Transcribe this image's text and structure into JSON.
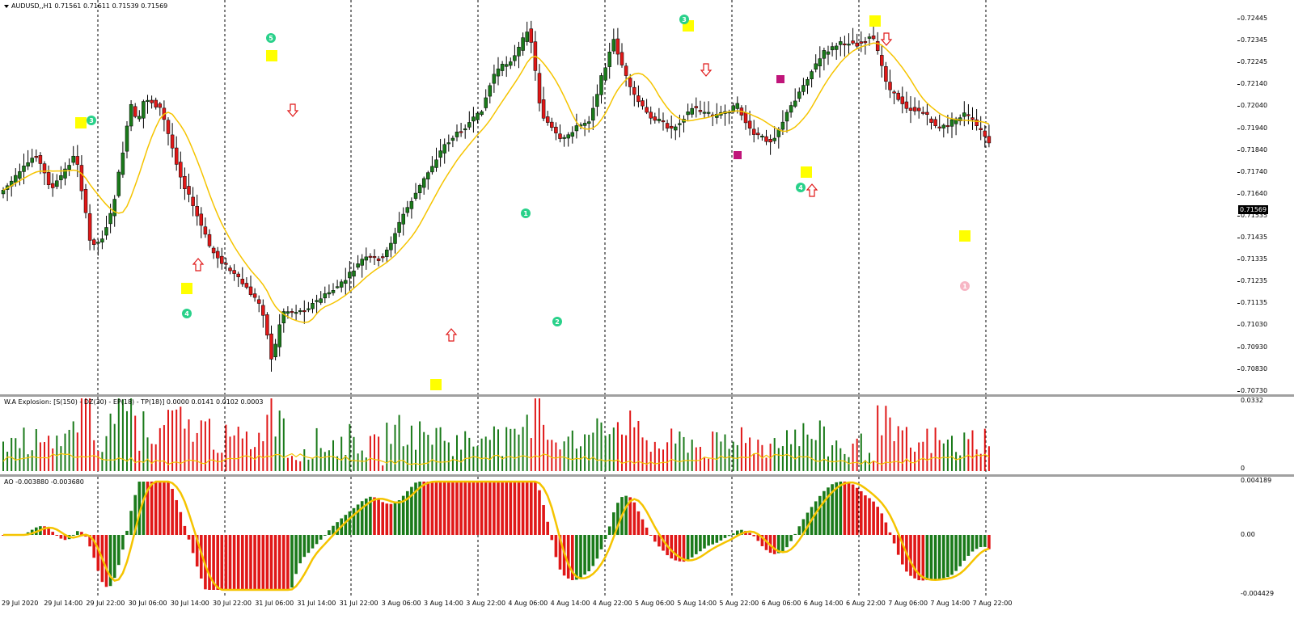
{
  "main": {
    "title_menu": "AUDUSD,,H1  0.71561 0.71611 0.71539 0.71569",
    "last_price": "0.71569",
    "y_ticks": [
      "0.72445",
      "0.72345",
      "0.72245",
      "0.72140",
      "0.72040",
      "0.71940",
      "0.71840",
      "0.71740",
      "0.71640",
      "0.71535",
      "0.71435",
      "0.71335",
      "0.71235",
      "0.71135",
      "0.71030",
      "0.70930",
      "0.70830",
      "0.70730"
    ],
    "wave_labels": [
      {
        "t": "3",
        "x": 113,
        "y": 149,
        "c": "#29d18a"
      },
      {
        "t": "5",
        "x": 335,
        "y": 47,
        "c": "#29d18a"
      },
      {
        "t": "4",
        "x": 231,
        "y": 388,
        "c": "#29d18a"
      },
      {
        "t": "1",
        "x": 650,
        "y": 264,
        "c": "#29d18a"
      },
      {
        "t": "2",
        "x": 689,
        "y": 398,
        "c": "#29d18a"
      },
      {
        "t": "3",
        "x": 846,
        "y": 24,
        "c": "#29d18a"
      },
      {
        "t": "4",
        "x": 990,
        "y": 232,
        "c": "#29d18a"
      },
      {
        "t": "1",
        "x": 1193,
        "y": 354,
        "c": "#f7b6c4"
      }
    ],
    "markers": {
      "yellow": [
        [
          100,
          152
        ],
        [
          336,
          69
        ],
        [
          231,
          357
        ],
        [
          539,
          476
        ],
        [
          851,
          32
        ],
        [
          997,
          213
        ],
        [
          1082,
          26
        ],
        [
          1193,
          292
        ]
      ],
      "magenta": [
        [
          965,
          98
        ],
        [
          912,
          192
        ]
      ],
      "arrows_up": [
        [
          245,
          328
        ],
        [
          558,
          415
        ],
        [
          1004,
          236
        ]
      ],
      "arrows_down": [
        [
          362,
          136
        ],
        [
          873,
          86
        ],
        [
          1096,
          48
        ]
      ]
    }
  },
  "wae": {
    "label": "W.A Explosion: [S(150) - DZ(30) - EP(18) - TP(18)] 0.0000 0.0141 0.0102 0.0003",
    "y_ticks": [
      "0.0332",
      "0"
    ]
  },
  "ao": {
    "label": "AO -0.003880 -0.003680",
    "y_ticks": [
      "0.004189",
      "0.00",
      "-0.004429"
    ]
  },
  "x_ticks": [
    "29 Jul 2020",
    "29 Jul 14:00",
    "29 Jul 22:00",
    "30 Jul 06:00",
    "30 Jul 14:00",
    "30 Jul 22:00",
    "31 Jul 06:00",
    "31 Jul 14:00",
    "31 Jul 22:00",
    "3 Aug 06:00",
    "3 Aug 14:00",
    "3 Aug 22:00",
    "4 Aug 06:00",
    "4 Aug 14:00",
    "4 Aug 22:00",
    "5 Aug 06:00",
    "5 Aug 14:00",
    "5 Aug 22:00",
    "6 Aug 06:00",
    "6 Aug 14:00",
    "6 Aug 22:00",
    "7 Aug 06:00",
    "7 Aug 14:00",
    "7 Aug 22:00"
  ],
  "colors": {
    "bull": "#1a7a1a",
    "bear": "#e01818",
    "ma": "#f5c400",
    "grid": "#000000"
  }
}
